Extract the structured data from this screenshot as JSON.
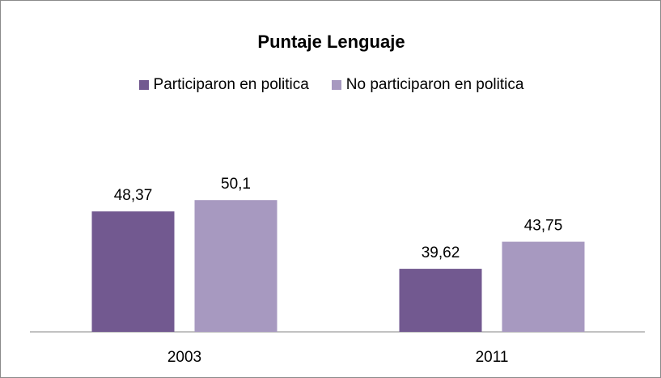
{
  "chart_data": {
    "type": "bar",
    "title": "Puntaje Lenguaje",
    "xlabel": "",
    "ylabel": "",
    "categories": [
      "2003",
      "2011"
    ],
    "series": [
      {
        "name": "Participaron en politica",
        "values": [
          "48,37",
          "39,62"
        ],
        "numeric": [
          48.37,
          39.62
        ],
        "color": "#725990"
      },
      {
        "name": "No participaron en politica",
        "values": [
          "50,1",
          "43,75"
        ],
        "numeric": [
          50.1,
          43.75
        ],
        "color": "#a799c0"
      }
    ],
    "ylim": [
      30,
      52
    ],
    "grid": false,
    "legend_position": "top"
  }
}
